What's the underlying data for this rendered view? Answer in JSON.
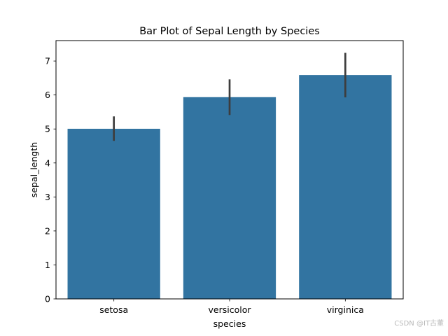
{
  "chart_data": {
    "type": "bar",
    "title": "Bar Plot of Sepal Length by Species",
    "xlabel": "species",
    "ylabel": "sepal_length",
    "categories": [
      "setosa",
      "versicolor",
      "virginica"
    ],
    "values": [
      5.006,
      5.936,
      6.588
    ],
    "error_bars": [
      [
        4.65,
        5.37
      ],
      [
        5.41,
        6.46
      ],
      [
        5.93,
        7.24
      ]
    ],
    "ylim": [
      0,
      7.6
    ],
    "yticks": [
      0,
      1,
      2,
      3,
      4,
      5,
      6,
      7
    ],
    "grid": false,
    "bar_color": "#3274a1",
    "error_color": "#3d3d3d"
  },
  "watermark": "CSDN @IT古董"
}
